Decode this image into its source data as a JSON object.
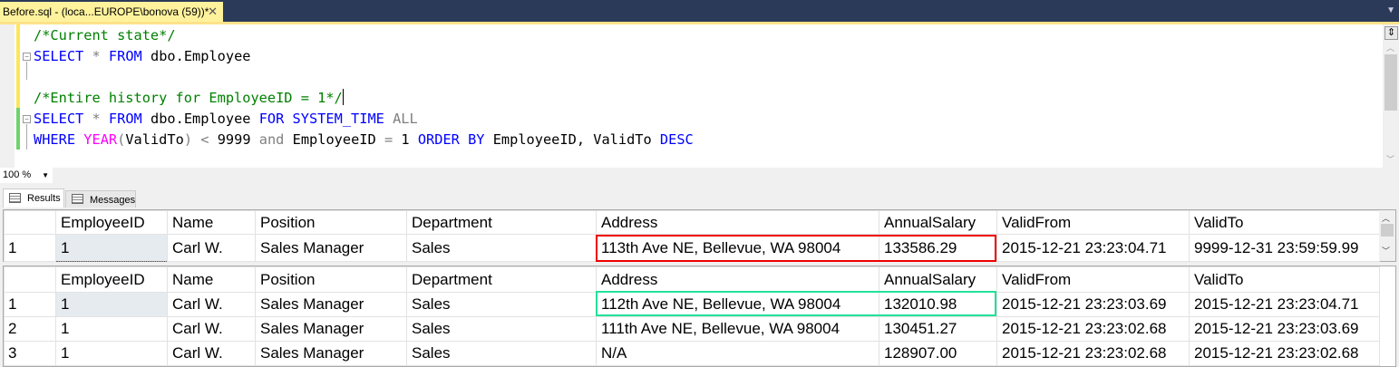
{
  "tab": {
    "title": "Before.sql - (loca...EUROPE\\bonova (59))*",
    "close": "✕"
  },
  "editor": {
    "line1": "/*Current state*/",
    "line2_kw1": "SELECT",
    "line2_op": "*",
    "line2_kw2": "FROM",
    "line2_rest": "dbo.Employee",
    "line4": "/*Entire history for EmployeeID = 1*/",
    "line5_kw1": "SELECT",
    "line5_op": "*",
    "line5_kw2": "FROM",
    "line5_obj": "dbo.Employee",
    "line5_kw3": "FOR SYSTEM_TIME",
    "line5_all": "ALL",
    "line6_kw1": "WHERE",
    "line6_fn": "YEAR",
    "line6_p1": "(",
    "line6_arg": "ValidTo",
    "line6_p2": ")",
    "line6_lt": "<",
    "line6_num": "9999",
    "line6_and": "and",
    "line6_col": "EmployeeID",
    "line6_eq": "=",
    "line6_one": "1",
    "line6_kw2": "ORDER BY",
    "line6_cols": "EmployeeID, ValidTo",
    "line6_desc": "DESC"
  },
  "zoom": "100 %",
  "result_tabs": [
    "Results",
    "Messages"
  ],
  "columns": [
    "",
    "EmployeeID",
    "Name",
    "Position",
    "Department",
    "Address",
    "AnnualSalary",
    "ValidFrom",
    "ValidTo"
  ],
  "grid1": [
    [
      "1",
      "1",
      "Carl W.",
      "Sales Manager",
      "Sales",
      "113th Ave NE, Bellevue, WA 98004",
      "133586.29",
      "2015-12-21 23:23:04.71",
      "9999-12-31 23:59:59.99"
    ]
  ],
  "grid2": [
    [
      "1",
      "1",
      "Carl W.",
      "Sales Manager",
      "Sales",
      "112th Ave NE, Bellevue, WA 98004",
      "132010.98",
      "2015-12-21 23:23:03.69",
      "2015-12-21 23:23:04.71"
    ],
    [
      "2",
      "1",
      "Carl W.",
      "Sales Manager",
      "Sales",
      "111th Ave NE, Bellevue, WA 98004",
      "130451.27",
      "2015-12-21 23:23:02.68",
      "2015-12-21 23:23:03.69"
    ],
    [
      "3",
      "1",
      "Carl W.",
      "Sales Manager",
      "Sales",
      "N/A",
      "128907.00",
      "2015-12-21 23:23:02.68",
      "2015-12-21 23:23:02.68"
    ]
  ],
  "colors": {
    "highlight_current": "#ee0000",
    "highlight_history": "#22e29a"
  }
}
